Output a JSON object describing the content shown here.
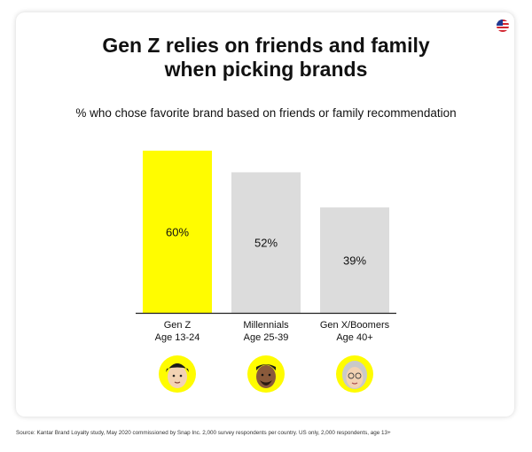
{
  "title_line1": "Gen Z relies on friends and family",
  "title_line2": "when picking brands",
  "source": "Source: Kantar Brand Loyalty study, May 2020 commissioned by Snap Inc. 2,000 survey respondents per country. US only, 2,000 respondents, age 13+",
  "colors": {
    "highlight": "#FFFC00",
    "neutral": "#DCDCDC",
    "axis": "#222222",
    "text": "#111111"
  },
  "chart_data": {
    "type": "bar",
    "title": "Gen Z relies on friends and family when picking brands",
    "subtitle": "% who chose favorite brand based on friends or family recommendation",
    "categories": [
      {
        "name": "Gen Z",
        "age": "Age 13-24",
        "value": 60,
        "label": "60%",
        "highlight": true,
        "avatar_icon": "gen-z-avatar-icon"
      },
      {
        "name": "Millennials",
        "age": "Age 25-39",
        "value": 52,
        "label": "52%",
        "highlight": false,
        "avatar_icon": "millennial-avatar-icon"
      },
      {
        "name": "Gen X/Boomers",
        "age": "Age 40+",
        "value": 39,
        "label": "39%",
        "highlight": false,
        "avatar_icon": "boomer-avatar-icon"
      }
    ],
    "ylim": [
      0,
      60
    ],
    "xlabel": "",
    "ylabel": "",
    "grid": false,
    "legend": "none"
  }
}
